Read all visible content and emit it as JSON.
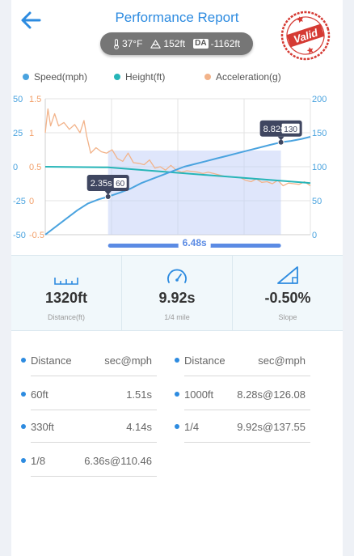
{
  "header": {
    "title": "Performance Report",
    "stamp_text": "Valid"
  },
  "conditions": {
    "temperature": "37°F",
    "elevation": "152ft",
    "da_badge": "DA",
    "density_altitude": "-1162ft"
  },
  "legend": {
    "speed": "Speed(mph)",
    "height": "Height(ft)",
    "acceleration": "Acceleration(g)"
  },
  "colors": {
    "speed": "#4aa3df",
    "height": "#26b5b8",
    "acceleration": "#f2b38a",
    "accent": "#2d8be0",
    "stamp": "#d53a33"
  },
  "chart_data": {
    "type": "line",
    "y_left_speed_ticks": [
      "50",
      "25",
      "0",
      "-25",
      "-50"
    ],
    "y_left_accel_ticks": [
      "1.5",
      "1",
      "0.5",
      "0",
      "-0.5"
    ],
    "y_right_height_ticks": [
      "200",
      "150",
      "100",
      "50",
      "0"
    ],
    "speed_axis": [
      -50,
      50
    ],
    "accel_axis": [
      -0.5,
      1.5
    ],
    "height_axis": [
      0,
      200
    ],
    "series": [
      {
        "name": "Speed(mph)",
        "x": [
          0,
          0.4,
          0.8,
          1.2,
          1.6,
          2.0,
          2.35,
          2.8,
          3.2,
          3.6,
          4.0,
          4.4,
          4.8,
          5.2,
          5.6,
          6.0,
          6.4,
          6.8,
          7.2,
          7.6,
          8.0,
          8.4,
          8.82,
          9.2,
          9.6,
          9.92
        ],
        "values": [
          -50,
          -44,
          -38,
          -32,
          -27,
          -24,
          -22,
          -19,
          -16,
          -12,
          -9,
          -6,
          -3,
          0,
          2,
          4,
          6,
          8,
          10,
          12,
          14,
          16,
          18,
          19,
          20.5,
          22
        ]
      },
      {
        "name": "Height(ft)",
        "x": [
          0,
          2.35,
          9.92
        ],
        "values": [
          0,
          -0.5,
          -12
        ]
      },
      {
        "name": "Acceleration(g)",
        "x": [
          0,
          0.1,
          0.2,
          0.35,
          0.5,
          0.7,
          0.9,
          1.1,
          1.3,
          1.45,
          1.55,
          1.7,
          1.9,
          2.1,
          2.3,
          2.5,
          2.7,
          2.9,
          3.1,
          3.3,
          3.5,
          3.7,
          3.9,
          4.1,
          4.3,
          4.5,
          4.7,
          4.9,
          5.1,
          5.3,
          5.5,
          5.7,
          5.9,
          6.1,
          6.3,
          6.5,
          6.7,
          6.9,
          7.1,
          7.3,
          7.5,
          7.7,
          7.9,
          8.1,
          8.3,
          8.5,
          8.7,
          8.9,
          9.1,
          9.3,
          9.5,
          9.7,
          9.92
        ],
        "values": [
          1.0,
          1.35,
          1.1,
          1.28,
          1.1,
          1.15,
          1.05,
          1.12,
          1.0,
          1.18,
          0.95,
          0.7,
          0.78,
          0.72,
          0.7,
          0.75,
          0.62,
          0.58,
          0.7,
          0.56,
          0.55,
          0.53,
          0.6,
          0.48,
          0.5,
          0.45,
          0.52,
          0.45,
          0.42,
          0.44,
          0.43,
          0.42,
          0.4,
          0.42,
          0.4,
          0.38,
          0.36,
          0.35,
          0.35,
          0.34,
          0.3,
          0.28,
          0.32,
          0.27,
          0.28,
          0.25,
          0.3,
          0.22,
          0.26,
          0.25,
          0.24,
          0.28,
          0.22
        ]
      }
    ],
    "x_range": [
      0,
      9.92
    ],
    "selection": {
      "start": 2.35,
      "end": 8.82,
      "duration_label": "6.48s"
    },
    "markers": [
      {
        "time_label": "2.35s",
        "value_label": "60",
        "x": 2.35,
        "speed": -22
      },
      {
        "time_label": "8.82s",
        "value_label": "130",
        "x": 8.82,
        "speed": 18
      }
    ]
  },
  "stats": [
    {
      "icon": "ruler-icon",
      "value": "1320ft",
      "label": "Distance(ft)"
    },
    {
      "icon": "speedometer-icon",
      "value": "9.92s",
      "label": "1/4 mile"
    },
    {
      "icon": "slope-icon",
      "value": "-0.50%",
      "label": "Slope"
    }
  ],
  "splits": {
    "header": {
      "left_label": "Distance",
      "left_value": "sec@mph",
      "right_label": "Distance",
      "right_value": "sec@mph"
    },
    "rows": [
      {
        "left_label": "60ft",
        "left_value": "1.51s",
        "right_label": "1000ft",
        "right_value": "8.28s@126.08"
      },
      {
        "left_label": "330ft",
        "left_value": "4.14s",
        "right_label": "1/4",
        "right_value": "9.92s@137.55"
      },
      {
        "left_label": "1/8",
        "left_value": "6.36s@110.46",
        "right_label": "",
        "right_value": ""
      }
    ]
  }
}
